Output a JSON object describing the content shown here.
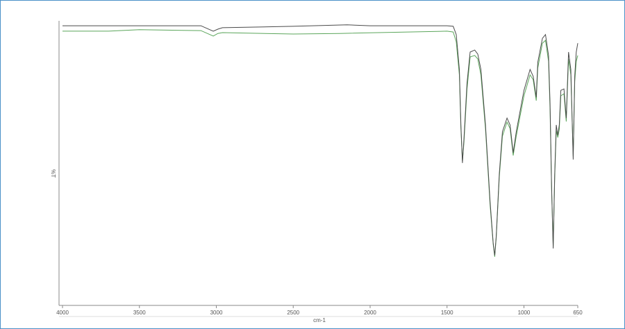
{
  "chart_data": {
    "type": "line",
    "x_label": "cm-1",
    "y_label": "%T",
    "xlim": [
      4000,
      650
    ],
    "ylim": [
      0,
      100
    ],
    "xticks": [
      4000,
      3500,
      3000,
      2500,
      2000,
      1500,
      1000,
      650
    ],
    "series": [
      {
        "color": "#4a4a4a",
        "x": [
          4000,
          3100,
          3020,
          2990,
          2960,
          2500,
          2150,
          2000,
          1500,
          1460,
          1440,
          1420,
          1410,
          1400,
          1390,
          1370,
          1350,
          1320,
          1300,
          1280,
          1250,
          1220,
          1200,
          1190,
          1180,
          1160,
          1140,
          1110,
          1090,
          1070,
          1050,
          1000,
          960,
          940,
          920,
          910,
          880,
          860,
          840,
          830,
          820,
          810,
          800,
          790,
          780,
          770,
          760,
          740,
          725,
          710,
          695,
          680,
          670,
          660,
          650
        ],
        "values": [
          97.8,
          97.8,
          95.9,
          96.6,
          97.1,
          97.6,
          98.1,
          97.8,
          97.8,
          97.6,
          94.7,
          82.5,
          63.1,
          49.8,
          58.3,
          77.7,
          88.6,
          89.3,
          87.9,
          82.5,
          63.1,
          36.4,
          21.8,
          17.5,
          24.3,
          46.1,
          60.7,
          65.5,
          63.1,
          53.4,
          60.7,
          75.2,
          82.5,
          80.1,
          72.8,
          85.0,
          93.4,
          94.7,
          87.4,
          70.4,
          41.3,
          19.9,
          46.1,
          63.1,
          59.5,
          63.1,
          75.2,
          75.7,
          65.5,
          88.6,
          82.5,
          51.0,
          80.1,
          88.6,
          91.7
        ]
      },
      {
        "color": "#5aa55a",
        "x": [
          4000,
          3700,
          3500,
          3100,
          3020,
          2990,
          2960,
          2500,
          2200,
          1500,
          1460,
          1440,
          1420,
          1410,
          1400,
          1390,
          1370,
          1350,
          1320,
          1300,
          1280,
          1250,
          1220,
          1200,
          1190,
          1180,
          1160,
          1140,
          1110,
          1090,
          1070,
          1050,
          1000,
          960,
          940,
          920,
          910,
          880,
          860,
          840,
          830,
          820,
          810,
          800,
          790,
          780,
          770,
          760,
          740,
          725,
          710,
          695,
          680,
          670,
          660,
          650
        ],
        "values": [
          95.9,
          95.9,
          96.4,
          96.1,
          94.2,
          95.1,
          95.4,
          94.9,
          95.1,
          95.9,
          95.6,
          92.2,
          80.6,
          61.9,
          50.5,
          57.0,
          75.7,
          86.9,
          87.4,
          86.2,
          80.6,
          61.7,
          35.2,
          21.4,
          17.0,
          23.8,
          44.9,
          59.2,
          64.1,
          61.9,
          52.4,
          59.2,
          73.3,
          80.6,
          78.9,
          71.6,
          83.0,
          91.7,
          92.7,
          85.4,
          68.4,
          40.8,
          20.6,
          44.9,
          61.2,
          58.7,
          61.7,
          73.3,
          74.0,
          64.3,
          86.2,
          80.6,
          52.2,
          78.2,
          85.4,
          87.4
        ]
      }
    ]
  }
}
